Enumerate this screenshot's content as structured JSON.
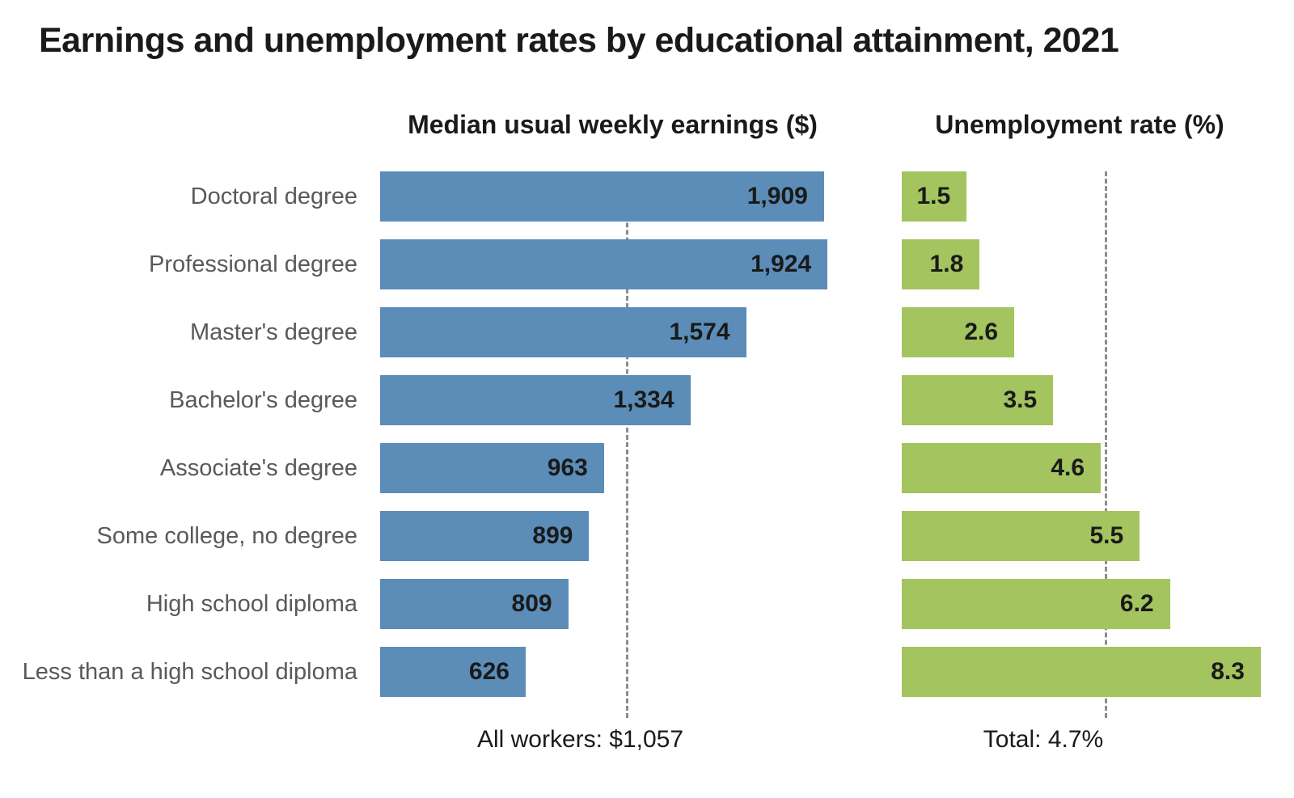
{
  "title": "Earnings and unemployment rates by educational attainment, 2021",
  "chart_data": {
    "type": "bar",
    "orientation": "horizontal",
    "grid": "off",
    "legend": "none",
    "categories": [
      "Doctoral degree",
      "Professional degree",
      "Master's degree",
      "Bachelor's degree",
      "Associate's degree",
      "Some college, no degree",
      "High school diploma",
      "Less than a high school diploma"
    ],
    "series": [
      {
        "name": "Median usual weekly earnings ($)",
        "values": [
          1909,
          1924,
          1574,
          1334,
          963,
          899,
          809,
          626
        ],
        "value_labels": [
          "1,909",
          "1,924",
          "1,574",
          "1,334",
          "963",
          "899",
          "809",
          "626"
        ],
        "color": "#5b8db8",
        "xmax": 2000,
        "reference_line": {
          "value": 1057,
          "label": "All workers: $1,057"
        }
      },
      {
        "name": "Unemployment rate (%)",
        "values": [
          1.5,
          1.8,
          2.6,
          3.5,
          4.6,
          5.5,
          6.2,
          8.3
        ],
        "value_labels": [
          "1.5",
          "1.8",
          "2.6",
          "3.5",
          "4.6",
          "5.5",
          "6.2",
          "8.3"
        ],
        "color": "#a3c45e",
        "xmax": 8.6,
        "reference_line": {
          "value": 4.7,
          "label": "Total: 4.7%"
        }
      }
    ],
    "reference_line_color": "#8c8c8c",
    "category_label_color": "#595959"
  }
}
